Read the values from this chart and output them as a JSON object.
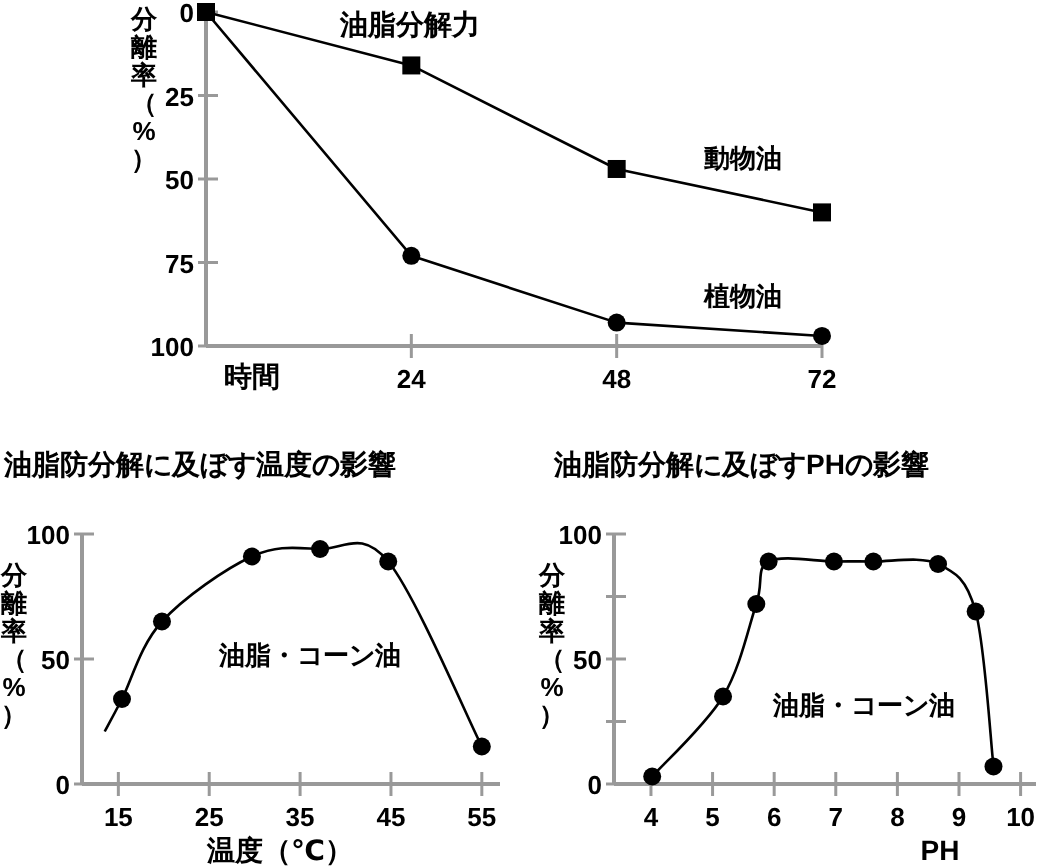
{
  "chart_data": [
    {
      "type": "line",
      "title": "油脂分解力",
      "xlabel": "時間",
      "ylabel": "分離率（%）",
      "xlim": [
        0,
        72
      ],
      "xticks": [
        24,
        48,
        72
      ],
      "ylim": [
        100,
        0
      ],
      "yticks": [
        0,
        25,
        50,
        75,
        100
      ],
      "grid": false,
      "legend": false,
      "series": [
        {
          "name": "動物油",
          "color": "#000000",
          "marker": "square",
          "x": [
            0,
            24,
            48,
            72
          ],
          "values": [
            0,
            16,
            47,
            60
          ]
        },
        {
          "name": "植物油",
          "color": "#000000",
          "marker": "circle",
          "x": [
            0,
            24,
            48,
            72
          ],
          "values": [
            0,
            73,
            93,
            97
          ]
        }
      ]
    },
    {
      "type": "line",
      "title": "油脂防分解に及ぼす温度の影響",
      "xlabel": "温度（℃）",
      "ylabel": "分離率（%）",
      "annotations": [
        "油脂・コーン油"
      ],
      "xlim": [
        11,
        57
      ],
      "xticks": [
        15,
        25,
        35,
        45,
        55
      ],
      "ylim": [
        0,
        100
      ],
      "yticks": [
        0,
        50,
        100
      ],
      "grid": false,
      "legend": false,
      "series": [
        {
          "type": "line",
          "color": "#000000",
          "marker": "none",
          "x": [
            13.5,
            15.4,
            19.8,
            29.7,
            37.2,
            44.7,
            55
          ],
          "values": [
            21,
            34,
            65,
            91,
            94,
            89,
            15
          ]
        },
        {
          "type": "scatter",
          "color": "#000000",
          "marker": "circle",
          "x": [
            15.4,
            19.8,
            29.7,
            37.2,
            44.7,
            55
          ],
          "values": [
            34,
            65,
            91,
            94,
            89,
            15
          ]
        }
      ]
    },
    {
      "type": "line",
      "title": "油脂防分解に及ぼすPHの影響",
      "xlabel": "PH",
      "ylabel": "分離率（%）",
      "annotations": [
        "油脂・コーン油"
      ],
      "xlim": [
        3.4,
        10.25
      ],
      "xticks": [
        4,
        5,
        6,
        7,
        8,
        9,
        10
      ],
      "ylim": [
        0,
        100
      ],
      "yticks": [
        0,
        {
          "value": 25,
          "label": null
        },
        50,
        {
          "value": 75,
          "label": null
        },
        100
      ],
      "grid": false,
      "legend": false,
      "series": [
        {
          "color": "#000000",
          "marker": "circle",
          "x": [
            4.02,
            5.17,
            5.71,
            5.91,
            6.97,
            7.61,
            8.66,
            9.27,
            9.56
          ],
          "values": [
            3,
            35,
            72,
            89,
            89,
            89,
            88,
            69,
            7
          ]
        }
      ]
    }
  ]
}
